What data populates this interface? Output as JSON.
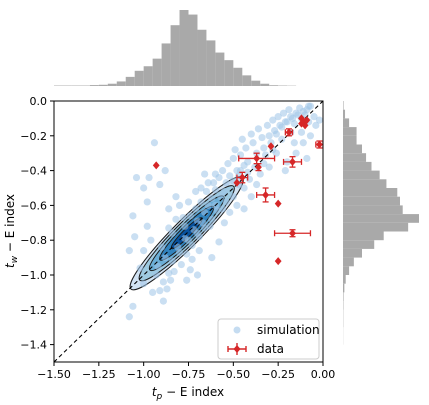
{
  "chart_data": {
    "type": "scatter",
    "xlabel_main": "t",
    "xlabel_sub": "p",
    "xlabel_rest": " − E index",
    "ylabel_main": "t",
    "ylabel_sub": "w",
    "ylabel_rest": " − E index",
    "xlim": [
      -1.5,
      0.0
    ],
    "ylim": [
      -1.5,
      0.0
    ],
    "xticks": [
      "−1.50",
      "−1.25",
      "−1.00",
      "−0.75",
      "−0.50",
      "−0.25",
      "0.00"
    ],
    "yticks": [
      "0.0",
      "−0.2",
      "−0.4",
      "−0.6",
      "−0.8",
      "−1.0",
      "−1.2",
      "−1.4"
    ],
    "xtick_values": [
      -1.5,
      -1.25,
      -1.0,
      -0.75,
      -0.5,
      -0.25,
      0.0
    ],
    "ytick_values": [
      0.0,
      -0.2,
      -0.4,
      -0.6,
      -0.8,
      -1.0,
      -1.2,
      -1.4
    ],
    "legend": [
      {
        "label": "simulation",
        "marker": "circle",
        "color": "#9ec5e8"
      },
      {
        "label": "data",
        "marker": "diamond",
        "color": "#d62728"
      }
    ],
    "legend_position": "lower-right",
    "reference_line": {
      "from": [
        -1.5,
        -1.5
      ],
      "to": [
        0.0,
        0.0
      ],
      "style": "dashed"
    },
    "contour": {
      "center": [
        -0.76,
        -0.76
      ],
      "angle_deg": 45,
      "levels": [
        {
          "a": 0.44,
          "b": 0.075,
          "fill": "#d2e3f3"
        },
        {
          "a": 0.37,
          "b": 0.063,
          "fill": "#9ecae1"
        },
        {
          "a": 0.29,
          "b": 0.05,
          "fill": "#6baed6"
        },
        {
          "a": 0.21,
          "b": 0.037,
          "fill": "#3182bd"
        },
        {
          "a": 0.12,
          "b": 0.022,
          "fill": "#08519c"
        }
      ]
    },
    "series": [
      {
        "name": "simulation",
        "points": [
          [
            -0.94,
            -0.24
          ],
          [
            -0.86,
            -0.62
          ],
          [
            -0.82,
            -0.55
          ],
          [
            -0.8,
            -0.6
          ],
          [
            -0.78,
            -0.67
          ],
          [
            -0.77,
            -0.72
          ],
          [
            -0.75,
            -0.8
          ],
          [
            -0.74,
            -0.66
          ],
          [
            -0.72,
            -0.74
          ],
          [
            -0.71,
            -0.62
          ],
          [
            -0.7,
            -0.69
          ],
          [
            -0.69,
            -0.78
          ],
          [
            -0.68,
            -0.58
          ],
          [
            -0.66,
            -0.64
          ],
          [
            -0.65,
            -0.52
          ],
          [
            -0.64,
            -0.6
          ],
          [
            -0.62,
            -0.56
          ],
          [
            -0.61,
            -0.47
          ],
          [
            -0.6,
            -0.51
          ],
          [
            -0.58,
            -0.44
          ],
          [
            -0.57,
            -0.55
          ],
          [
            -0.56,
            -0.4
          ],
          [
            -0.54,
            -0.47
          ],
          [
            -0.53,
            -0.36
          ],
          [
            -0.52,
            -0.43
          ],
          [
            -0.5,
            -0.33
          ],
          [
            -0.49,
            -0.28
          ],
          [
            -0.48,
            -0.4
          ],
          [
            -0.46,
            -0.31
          ],
          [
            -0.45,
            -0.22
          ],
          [
            -0.43,
            -0.27
          ],
          [
            -0.42,
            -0.35
          ],
          [
            -0.4,
            -0.19
          ],
          [
            -0.39,
            -0.24
          ],
          [
            -0.37,
            -0.3
          ],
          [
            -0.36,
            -0.16
          ],
          [
            -0.34,
            -0.21
          ],
          [
            -0.33,
            -0.27
          ],
          [
            -0.31,
            -0.14
          ],
          [
            -0.3,
            -0.2
          ],
          [
            -0.28,
            -0.11
          ],
          [
            -0.27,
            -0.17
          ],
          [
            -0.25,
            -0.09
          ],
          [
            -0.24,
            -0.14
          ],
          [
            -0.22,
            -0.07
          ],
          [
            -0.21,
            -0.12
          ],
          [
            -0.19,
            -0.05
          ],
          [
            -0.18,
            -0.09
          ],
          [
            -0.16,
            -0.13
          ],
          [
            -0.15,
            -0.07
          ],
          [
            -0.13,
            -0.04
          ],
          [
            -0.12,
            -0.1
          ],
          [
            -0.1,
            -0.08
          ],
          [
            -0.09,
            -0.05
          ],
          [
            -0.07,
            -0.03
          ],
          [
            -0.08,
            -0.12
          ],
          [
            -0.2,
            -0.35
          ],
          [
            -0.16,
            -0.24
          ],
          [
            -0.26,
            -0.3
          ],
          [
            -0.3,
            -0.38
          ],
          [
            -0.35,
            -0.42
          ],
          [
            -0.41,
            -0.45
          ],
          [
            -0.44,
            -0.5
          ],
          [
            -0.47,
            -0.48
          ],
          [
            -0.55,
            -0.52
          ],
          [
            -0.59,
            -0.63
          ],
          [
            -0.63,
            -0.72
          ],
          [
            -0.67,
            -0.7
          ],
          [
            -0.69,
            -0.86
          ],
          [
            -0.73,
            -0.91
          ],
          [
            -0.76,
            -0.88
          ],
          [
            -0.79,
            -0.94
          ],
          [
            -0.83,
            -0.98
          ],
          [
            -0.85,
            -1.03
          ],
          [
            -0.87,
            -1.08
          ],
          [
            -0.81,
            -0.84
          ],
          [
            -0.84,
            -0.76
          ],
          [
            -0.88,
            -0.9
          ],
          [
            -0.9,
            -0.84
          ],
          [
            -0.92,
            -0.95
          ],
          [
            -0.96,
            -0.8
          ],
          [
            -0.98,
            -0.72
          ],
          [
            -1.0,
            -0.86
          ],
          [
            -1.02,
            -0.96
          ],
          [
            -1.05,
            -0.78
          ],
          [
            -1.06,
            -0.66
          ],
          [
            -0.98,
            -0.58
          ],
          [
            -1.0,
            -0.5
          ],
          [
            -1.04,
            -0.44
          ],
          [
            -0.97,
            -0.44
          ],
          [
            -0.91,
            -0.48
          ],
          [
            -0.88,
            -0.4
          ],
          [
            -0.95,
            -1.1
          ],
          [
            -1.08,
            -0.86
          ],
          [
            -1.06,
            -1.18
          ],
          [
            -1.08,
            -1.24
          ],
          [
            -1.0,
            -1.05
          ],
          [
            -0.93,
            -1.0
          ],
          [
            -0.89,
            -1.15
          ],
          [
            -0.62,
            -0.9
          ],
          [
            -0.58,
            -0.81
          ],
          [
            -0.55,
            -0.7
          ],
          [
            -0.52,
            -0.64
          ],
          [
            -0.48,
            -0.6
          ],
          [
            -0.44,
            -0.62
          ],
          [
            -0.4,
            -0.55
          ],
          [
            -0.37,
            -0.48
          ],
          [
            -0.33,
            -0.36
          ],
          [
            -0.28,
            -0.28
          ],
          [
            -0.23,
            -0.22
          ],
          [
            -0.18,
            -0.18
          ],
          [
            -0.12,
            -0.18
          ],
          [
            -0.05,
            -0.09
          ],
          [
            -0.04,
            -0.14
          ],
          [
            -0.11,
            -0.24
          ],
          [
            -0.07,
            -0.2
          ],
          [
            -0.02,
            -0.11
          ],
          [
            -0.15,
            -0.3
          ],
          [
            -0.21,
            -0.4
          ],
          [
            -0.09,
            -0.33
          ],
          [
            -0.66,
            -0.42
          ],
          [
            -0.71,
            -0.52
          ],
          [
            -0.75,
            -0.58
          ],
          [
            -0.74,
            -0.97
          ],
          [
            -0.7,
            -1.0
          ],
          [
            -0.76,
            -1.03
          ],
          [
            -0.82,
            -0.68
          ],
          [
            -0.86,
            -0.73
          ],
          [
            -0.6,
            -0.42
          ],
          [
            -0.64,
            -0.47
          ],
          [
            -0.68,
            -0.5
          ],
          [
            -0.5,
            -0.55
          ],
          [
            -0.46,
            -0.4
          ],
          [
            -0.42,
            -0.41
          ],
          [
            -0.38,
            -0.38
          ],
          [
            -0.32,
            -0.31
          ],
          [
            -0.29,
            -0.24
          ],
          [
            -0.26,
            -0.19
          ],
          [
            -0.23,
            -0.15
          ],
          [
            -0.2,
            -0.12
          ],
          [
            -0.17,
            -0.1
          ],
          [
            -0.14,
            -0.08
          ],
          [
            -0.11,
            -0.06
          ],
          [
            -0.08,
            -0.03
          ],
          [
            -0.7,
            -0.76
          ],
          [
            -0.73,
            -0.83
          ],
          [
            -0.77,
            -0.79
          ],
          [
            -0.8,
            -0.87
          ],
          [
            -0.84,
            -0.92
          ],
          [
            -0.86,
            -0.99
          ],
          [
            -0.89,
            -1.04
          ],
          [
            -0.91,
            -1.09
          ],
          [
            -0.66,
            -0.73
          ],
          [
            -0.62,
            -0.68
          ],
          [
            -0.6,
            -0.6
          ],
          [
            -0.56,
            -0.62
          ],
          [
            -0.54,
            -0.58
          ],
          [
            -0.5,
            -0.46
          ],
          [
            -0.47,
            -0.43
          ],
          [
            -0.44,
            -0.37
          ]
        ]
      },
      {
        "name": "data",
        "points": [
          {
            "x": -0.93,
            "y": -0.37,
            "xerr": 0.0,
            "yerr": 0.0
          },
          {
            "x": -0.29,
            "y": -0.26,
            "xerr": 0.0,
            "yerr": 0.0
          },
          {
            "x": -0.37,
            "y": -0.33,
            "xerr": 0.1,
            "yerr": 0.03
          },
          {
            "x": -0.36,
            "y": -0.38,
            "xerr": 0.0,
            "yerr": 0.02
          },
          {
            "x": -0.45,
            "y": -0.44,
            "xerr": 0.03,
            "yerr": 0.03
          },
          {
            "x": -0.48,
            "y": -0.47,
            "xerr": 0.0,
            "yerr": 0.0
          },
          {
            "x": -0.17,
            "y": -0.35,
            "xerr": 0.05,
            "yerr": 0.03
          },
          {
            "x": -0.32,
            "y": -0.54,
            "xerr": 0.05,
            "yerr": 0.04
          },
          {
            "x": -0.25,
            "y": -0.59,
            "xerr": 0.0,
            "yerr": 0.0
          },
          {
            "x": -0.17,
            "y": -0.76,
            "xerr": 0.1,
            "yerr": 0.02
          },
          {
            "x": -0.25,
            "y": -0.92,
            "xerr": 0.0,
            "yerr": 0.0
          },
          {
            "x": -0.19,
            "y": -0.18,
            "xerr": 0.02,
            "yerr": 0.02
          },
          {
            "x": -0.12,
            "y": -0.1,
            "xerr": 0.0,
            "yerr": 0.0
          },
          {
            "x": -0.11,
            "y": -0.12,
            "xerr": 0.0,
            "yerr": 0.0
          },
          {
            "x": -0.1,
            "y": -0.14,
            "xerr": 0.0,
            "yerr": 0.0
          },
          {
            "x": -0.12,
            "y": -0.13,
            "xerr": 0.0,
            "yerr": 0.0
          },
          {
            "x": -0.09,
            "y": -0.11,
            "xerr": 0.0,
            "yerr": 0.0
          },
          {
            "x": -0.02,
            "y": -0.25,
            "xerr": 0.02,
            "yerr": 0.02
          }
        ]
      }
    ],
    "top_histogram": {
      "bins": [
        -1.5,
        -1.4,
        -1.3,
        -1.25,
        -1.2,
        -1.15,
        -1.1,
        -1.05,
        -1.0,
        -0.95,
        -0.9,
        -0.85,
        -0.8,
        -0.75,
        -0.7,
        -0.65,
        -0.6,
        -0.55,
        -0.5,
        -0.45,
        -0.4,
        -0.35,
        -0.3,
        -0.25,
        -0.2,
        -0.15
      ],
      "counts": [
        0.3,
        0.3,
        0.6,
        0.8,
        1.5,
        3.0,
        6.0,
        10.0,
        13.0,
        18.0,
        28.0,
        40.0,
        50.0,
        47.0,
        37.0,
        30.0,
        22.0,
        17.0,
        12.0,
        7.0,
        3.5,
        1.5,
        0.5,
        0.3,
        0.2
      ]
    },
    "right_histogram": {
      "bins": [
        0.0,
        -0.05,
        -0.1,
        -0.15,
        -0.2,
        -0.25,
        -0.3,
        -0.35,
        -0.4,
        -0.45,
        -0.5,
        -0.55,
        -0.6,
        -0.65,
        -0.7,
        -0.75,
        -0.8,
        -0.85,
        -0.9,
        -0.95,
        -1.0,
        -1.05,
        -1.1,
        -1.15,
        -1.2,
        -1.25,
        -1.3,
        -1.4
      ],
      "counts": [
        0.4,
        1.5,
        4.5,
        10.0,
        10.0,
        14.0,
        17.0,
        21.0,
        27.0,
        32.0,
        40.0,
        42.0,
        44.0,
        56.0,
        48.0,
        30.0,
        23.0,
        14.0,
        8.0,
        4.5,
        2.0,
        1.0,
        0.4,
        0.3,
        0.2,
        0.2,
        0.1
      ]
    }
  }
}
